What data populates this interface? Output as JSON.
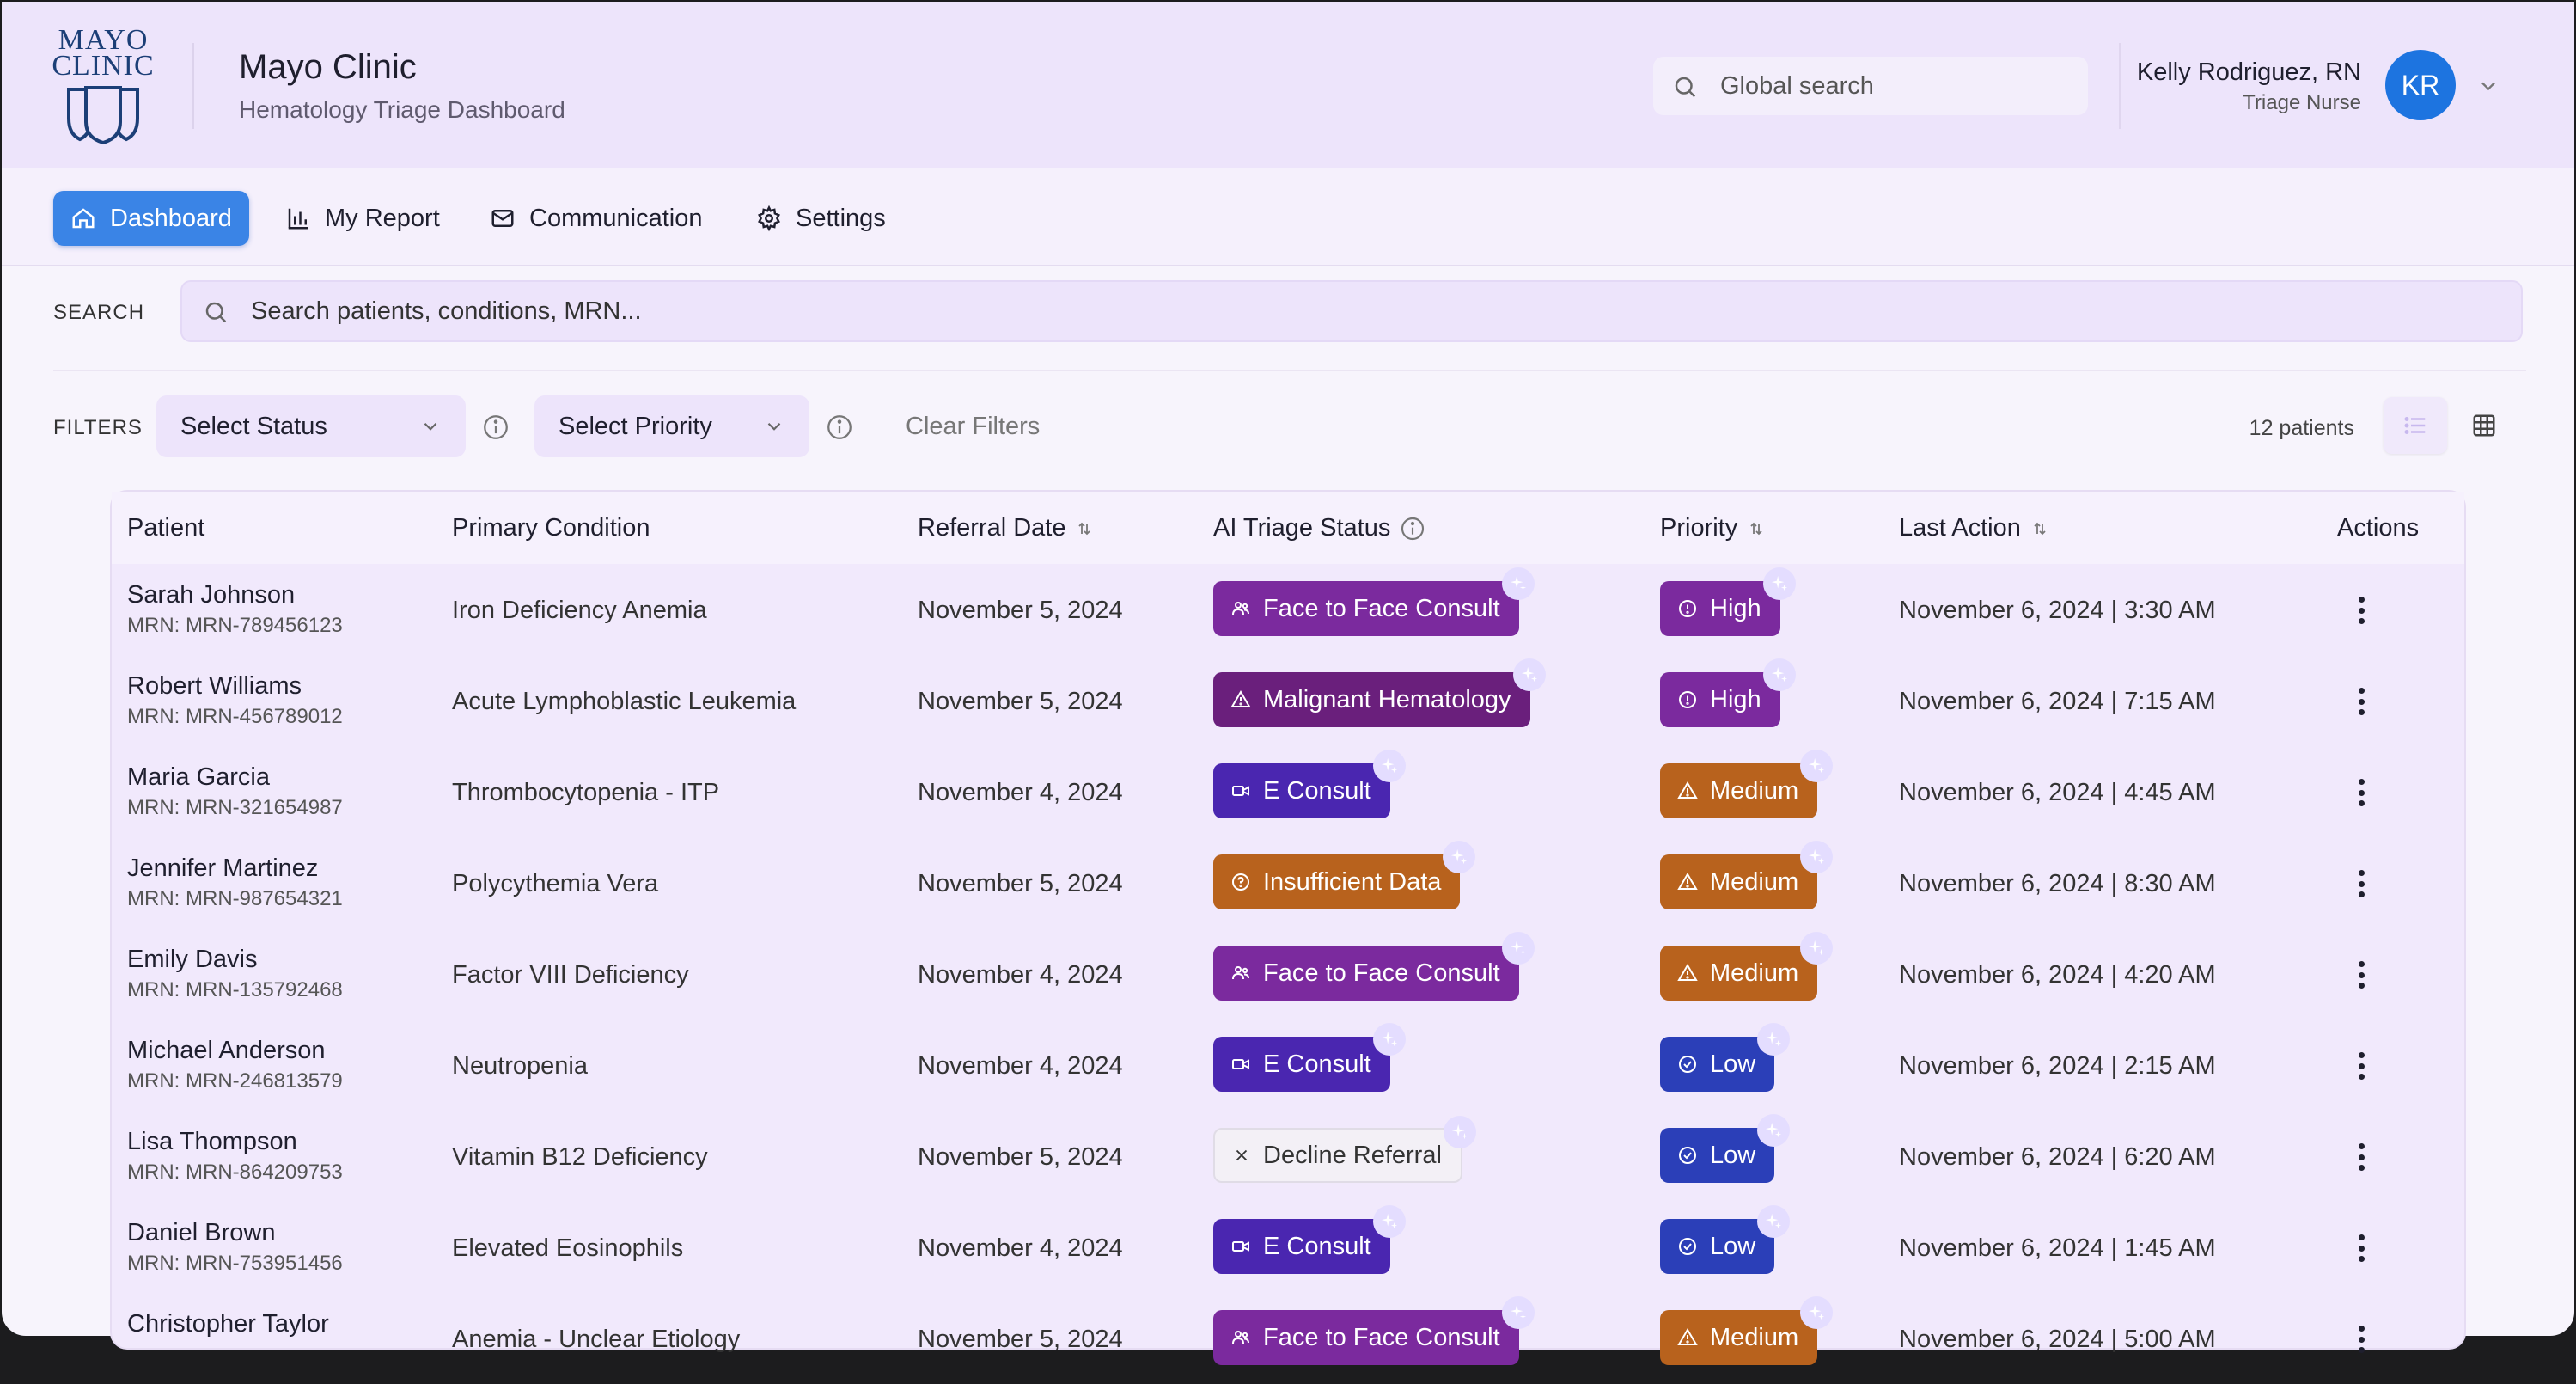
{
  "header": {
    "logo_line1": "MAYO",
    "logo_line2": "CLINIC",
    "title": "Mayo Clinic",
    "subtitle": "Hematology Triage Dashboard",
    "global_search_placeholder": "Global search",
    "user": {
      "name": "Kelly Rodriguez, RN",
      "role": "Triage Nurse",
      "initials": "KR"
    }
  },
  "nav": [
    {
      "label": "Dashboard",
      "icon": "home-icon",
      "active": true
    },
    {
      "label": "My Report",
      "icon": "bar-chart-icon",
      "active": false
    },
    {
      "label": "Communication",
      "icon": "mail-icon",
      "active": false
    },
    {
      "label": "Settings",
      "icon": "gear-icon",
      "active": false
    }
  ],
  "search": {
    "label": "SEARCH",
    "placeholder": "Search patients, conditions, MRN..."
  },
  "filters": {
    "label": "FILTERS",
    "status_select": "Select Status",
    "priority_select": "Select Priority",
    "clear_label": "Clear Filters",
    "patient_count": "12 patients"
  },
  "table": {
    "columns": {
      "patient": "Patient",
      "condition": "Primary Condition",
      "referral_date": "Referral Date",
      "ai_status": "AI Triage Status",
      "priority": "Priority",
      "last_action": "Last Action",
      "actions": "Actions"
    },
    "rows": [
      {
        "name": "Sarah Johnson",
        "mrn": "MRN: MRN-789456123",
        "condition": "Iron Deficiency Anemia",
        "referral": "November 5, 2024",
        "status": "Face to Face Consult",
        "priority": "High",
        "last_action": "November 6, 2024 | 3:30 AM"
      },
      {
        "name": "Robert Williams",
        "mrn": "MRN: MRN-456789012",
        "condition": "Acute Lymphoblastic Leukemia",
        "referral": "November 5, 2024",
        "status": "Malignant Hematology",
        "priority": "High",
        "last_action": "November 6, 2024 | 7:15 AM"
      },
      {
        "name": "Maria Garcia",
        "mrn": "MRN: MRN-321654987",
        "condition": "Thrombocytopenia - ITP",
        "referral": "November 4, 2024",
        "status": "E Consult",
        "priority": "Medium",
        "last_action": "November 6, 2024 | 4:45 AM"
      },
      {
        "name": "Jennifer Martinez",
        "mrn": "MRN: MRN-987654321",
        "condition": "Polycythemia Vera",
        "referral": "November 5, 2024",
        "status": "Insufficient Data",
        "priority": "Medium",
        "last_action": "November 6, 2024 | 8:30 AM"
      },
      {
        "name": "Emily Davis",
        "mrn": "MRN: MRN-135792468",
        "condition": "Factor VIII Deficiency",
        "referral": "November 4, 2024",
        "status": "Face to Face Consult",
        "priority": "Medium",
        "last_action": "November 6, 2024 | 4:20 AM"
      },
      {
        "name": "Michael Anderson",
        "mrn": "MRN: MRN-246813579",
        "condition": "Neutropenia",
        "referral": "November 4, 2024",
        "status": "E Consult",
        "priority": "Low",
        "last_action": "November 6, 2024 | 2:15 AM"
      },
      {
        "name": "Lisa Thompson",
        "mrn": "MRN: MRN-864209753",
        "condition": "Vitamin B12 Deficiency",
        "referral": "November 5, 2024",
        "status": "Decline Referral",
        "priority": "Low",
        "last_action": "November 6, 2024 | 6:20 AM"
      },
      {
        "name": "Daniel Brown",
        "mrn": "MRN: MRN-753951456",
        "condition": "Elevated Eosinophils",
        "referral": "November 4, 2024",
        "status": "E Consult",
        "priority": "Low",
        "last_action": "November 6, 2024 | 1:45 AM"
      },
      {
        "name": "Christopher Taylor",
        "mrn": "",
        "condition": "Anemia - Unclear Etiology",
        "referral": "November 5, 2024",
        "status": "Face to Face Consult",
        "priority": "Medium",
        "last_action": "November 6, 2024 | 5:00 AM"
      }
    ]
  },
  "status_styles": {
    "Face to Face Consult": {
      "bg": "#7b2a9e",
      "fg": "#ffffff",
      "icon": "users-icon"
    },
    "Malignant Hematology": {
      "bg": "#6a1f7c",
      "fg": "#ffffff",
      "icon": "warning-icon"
    },
    "E Consult": {
      "bg": "#4a26b0",
      "fg": "#ffffff",
      "icon": "video-icon"
    },
    "Insufficient Data": {
      "bg": "#b8621d",
      "fg": "#ffffff",
      "icon": "help-circle-icon"
    },
    "Decline Referral": {
      "bg": "#f3f0f6",
      "fg": "#333333",
      "icon": "close-icon"
    }
  },
  "priority_styles": {
    "High": {
      "bg": "#7b2a9e",
      "icon": "alert-circle-icon"
    },
    "Medium": {
      "bg": "#b8621d",
      "icon": "warning-icon"
    },
    "Low": {
      "bg": "#2b3fb8",
      "icon": "check-circle-icon"
    }
  }
}
